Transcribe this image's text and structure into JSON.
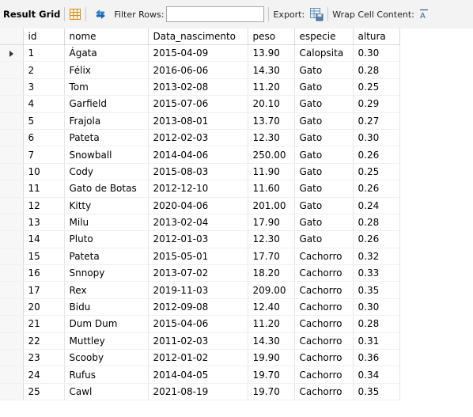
{
  "toolbar": {
    "result_grid_label": "Result Grid",
    "filter_rows_label": "Filter Rows:",
    "filter_rows_value": "",
    "export_label": "Export:",
    "wrap_cell_label": "Wrap Cell Content:",
    "icons": [
      "grid-view-icon",
      "refresh-arrows-icon",
      "export-file-icon",
      "wrap-text-icon"
    ]
  },
  "grid": {
    "columns": [
      "id",
      "nome",
      "Data_nascimento",
      "peso",
      "especie",
      "altura"
    ],
    "selected_row": 0,
    "rows": [
      [
        "1",
        "Ágata",
        "2015-04-09",
        "13.90",
        "Calopsita",
        "0.30"
      ],
      [
        "2",
        "Félix",
        "2016-06-06",
        "14.30",
        "Gato",
        "0.28"
      ],
      [
        "3",
        "Tom",
        "2013-02-08",
        "11.20",
        "Gato",
        "0.25"
      ],
      [
        "4",
        "Garfield",
        "2015-07-06",
        "20.10",
        "Gato",
        "0.29"
      ],
      [
        "5",
        "Frajola",
        "2013-08-01",
        "13.70",
        "Gato",
        "0.27"
      ],
      [
        "6",
        "Pateta",
        "2012-02-03",
        "12.30",
        "Gato",
        "0.30"
      ],
      [
        "7",
        "Snowball",
        "2014-04-06",
        "250.00",
        "Gato",
        "0.26"
      ],
      [
        "10",
        "Cody",
        "2015-08-03",
        "11.90",
        "Gato",
        "0.25"
      ],
      [
        "11",
        "Gato de Botas",
        "2012-12-10",
        "11.60",
        "Gato",
        "0.26"
      ],
      [
        "12",
        "Kitty",
        "2020-04-06",
        "201.00",
        "Gato",
        "0.24"
      ],
      [
        "13",
        "Milu",
        "2013-02-04",
        "17.90",
        "Gato",
        "0.28"
      ],
      [
        "14",
        "Pluto",
        "2012-01-03",
        "12.30",
        "Gato",
        "0.26"
      ],
      [
        "15",
        "Pateta",
        "2015-05-01",
        "17.70",
        "Cachorro",
        "0.32"
      ],
      [
        "16",
        "Snnopy",
        "2013-07-02",
        "18.20",
        "Cachorro",
        "0.33"
      ],
      [
        "17",
        "Rex",
        "2019-11-03",
        "209.00",
        "Cachorro",
        "0.35"
      ],
      [
        "20",
        "Bidu",
        "2012-09-08",
        "12.40",
        "Cachorro",
        "0.30"
      ],
      [
        "21",
        "Dum Dum",
        "2015-04-06",
        "11.20",
        "Cachorro",
        "0.28"
      ],
      [
        "22",
        "Muttley",
        "2011-02-03",
        "14.30",
        "Cachorro",
        "0.31"
      ],
      [
        "23",
        "Scooby",
        "2012-01-02",
        "19.90",
        "Cachorro",
        "0.36"
      ],
      [
        "24",
        "Rufus",
        "2014-04-05",
        "19.70",
        "Cachorro",
        "0.34"
      ],
      [
        "25",
        "Cawl",
        "2021-08-19",
        "19.70",
        "Cachorro",
        "0.35"
      ]
    ]
  },
  "colors": {
    "toolbar_bg": "#f3f3f3",
    "refresh_icon": "#1f7fd6",
    "grid_icon": "#e8a33c"
  }
}
